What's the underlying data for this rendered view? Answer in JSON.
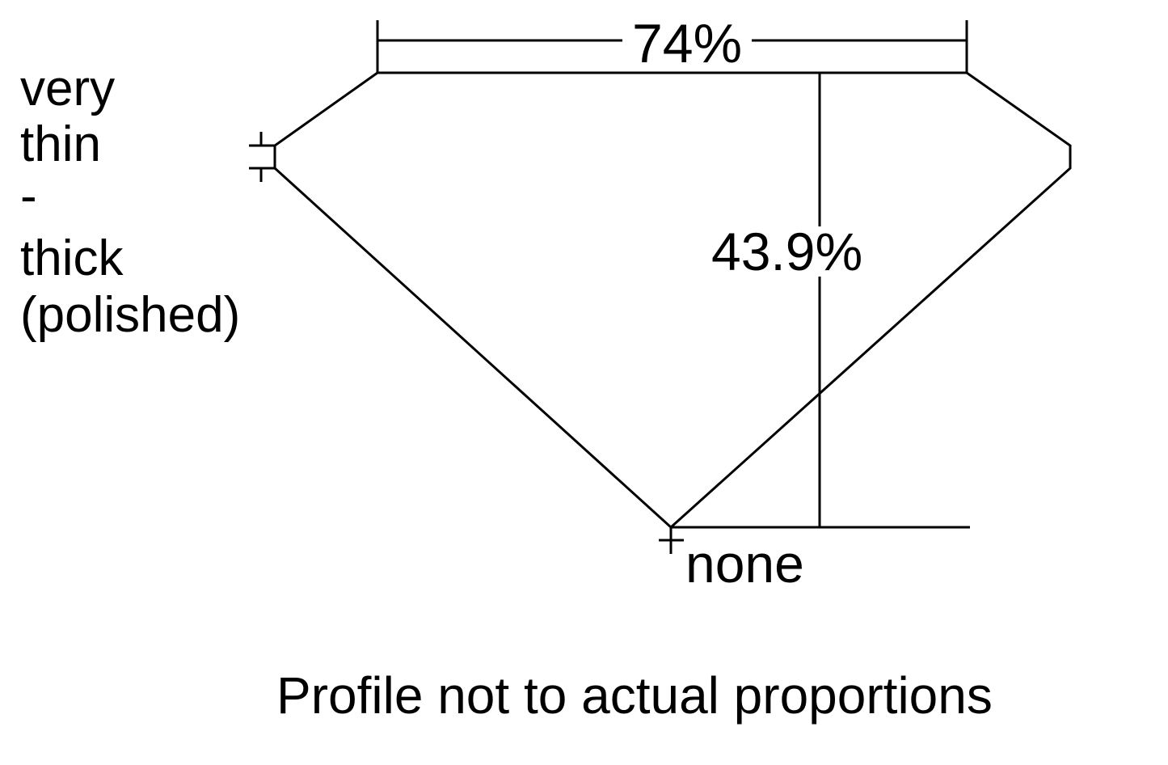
{
  "labels": {
    "table_width": "74%",
    "total_depth": "43.9%",
    "girdle_lines": [
      "very",
      "thin",
      "-",
      "thick",
      "(polished)"
    ],
    "culet": "none",
    "caption": "Profile not to actual proportions"
  },
  "colors": {
    "stroke": "#000000",
    "background": "#ffffff"
  }
}
